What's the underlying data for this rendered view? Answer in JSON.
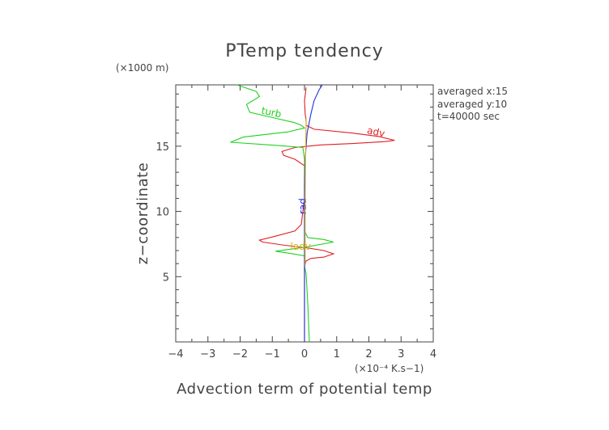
{
  "chart_data": {
    "type": "line",
    "title": "PTemp tendency",
    "xlabel": "Advection term of potential temp",
    "x_multiplier": "(×10⁻⁴ K.s−1)",
    "ylabel": "z−coordinate",
    "y_multiplier": "(×1000 m)",
    "xlim": [
      -4,
      4
    ],
    "ylim": [
      0,
      19.7
    ],
    "x_ticks": [
      -4,
      -3,
      -2,
      -1,
      0,
      1,
      2,
      3,
      4
    ],
    "y_ticks": [
      5,
      10,
      15
    ],
    "info_lines": [
      "averaged  x:15",
      "averaged  y:10",
      "t=40000 sec"
    ],
    "series": [
      {
        "name": "adv",
        "color": "#e02020",
        "points": [
          [
            0,
            0
          ],
          [
            0,
            5.8
          ],
          [
            0.05,
            6.2
          ],
          [
            0.2,
            6.4
          ],
          [
            0.6,
            6.5
          ],
          [
            0.9,
            6.75
          ],
          [
            0.6,
            7.0
          ],
          [
            0.1,
            7.2
          ],
          [
            -0.6,
            7.4
          ],
          [
            -1.3,
            7.65
          ],
          [
            -1.4,
            7.8
          ],
          [
            -0.9,
            8.1
          ],
          [
            -0.3,
            8.5
          ],
          [
            -0.1,
            9
          ],
          [
            -0.05,
            10
          ],
          [
            0,
            11
          ],
          [
            0,
            12.5
          ],
          [
            0,
            13.5
          ],
          [
            -0.3,
            14
          ],
          [
            -0.65,
            14.3
          ],
          [
            -0.7,
            14.6
          ],
          [
            -0.3,
            14.9
          ],
          [
            0.5,
            15.1
          ],
          [
            1.5,
            15.2
          ],
          [
            2.5,
            15.35
          ],
          [
            2.8,
            15.45
          ],
          [
            2.3,
            15.75
          ],
          [
            1.5,
            16.0
          ],
          [
            0.3,
            16.3
          ],
          [
            0.05,
            16.6
          ],
          [
            0.05,
            16.9
          ],
          [
            0.02,
            17.5
          ],
          [
            0,
            18.5
          ],
          [
            0.05,
            19.5
          ]
        ],
        "label": "adv"
      },
      {
        "name": "turb",
        "color": "#20d020",
        "points": [
          [
            0.15,
            0
          ],
          [
            0.1,
            3
          ],
          [
            0.05,
            5.2
          ],
          [
            0,
            5.8
          ],
          [
            0,
            6.6
          ],
          [
            -0.5,
            6.8
          ],
          [
            -0.9,
            6.95
          ],
          [
            -0.3,
            7.15
          ],
          [
            0.1,
            7.3
          ],
          [
            0.9,
            7.65
          ],
          [
            0.6,
            7.85
          ],
          [
            0.1,
            8.0
          ],
          [
            0,
            8.5
          ],
          [
            0,
            9
          ],
          [
            0,
            10
          ],
          [
            0,
            11
          ],
          [
            0,
            12.5
          ],
          [
            0,
            14
          ],
          [
            -0.05,
            14.9
          ],
          [
            -0.8,
            15.05
          ],
          [
            -2.3,
            15.3
          ],
          [
            -1.9,
            15.7
          ],
          [
            -0.5,
            16.1
          ],
          [
            0,
            16.4
          ],
          [
            -0.1,
            16.6
          ],
          [
            -0.3,
            16.8
          ],
          [
            -1,
            17.2
          ],
          [
            -1.7,
            17.6
          ],
          [
            -1.8,
            18.2
          ],
          [
            -1.4,
            18.8
          ],
          [
            -1.5,
            19.2
          ],
          [
            -2.1,
            19.7
          ]
        ],
        "label": "turb"
      },
      {
        "name": "rad",
        "color": "#2030e0",
        "points": [
          [
            0,
            0
          ],
          [
            0,
            4
          ],
          [
            0,
            8
          ],
          [
            0,
            12
          ],
          [
            0.02,
            14
          ],
          [
            0.08,
            16
          ],
          [
            0.2,
            17.5
          ],
          [
            0.3,
            18.5
          ],
          [
            0.45,
            19.3
          ],
          [
            0.55,
            19.7
          ]
        ],
        "label": "rad"
      },
      {
        "name": "ladv",
        "color": "#d8b020",
        "points": [
          [
            0.02,
            5.8
          ],
          [
            0.02,
            10.5
          ],
          [
            0.03,
            14
          ],
          [
            0.05,
            16.8
          ],
          [
            0.05,
            17.2
          ]
        ],
        "label": "ladv"
      }
    ]
  }
}
